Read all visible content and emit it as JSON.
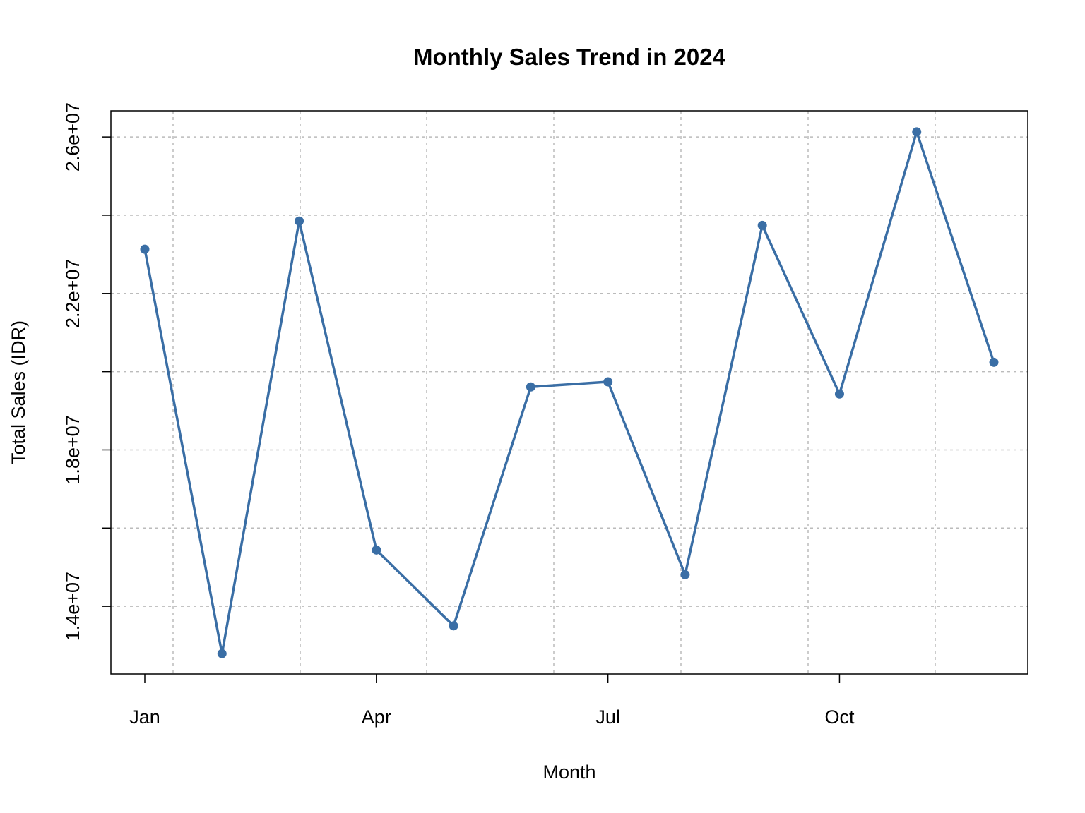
{
  "chart_data": {
    "type": "line",
    "title": "Monthly Sales Trend in 2024",
    "x_label": "Month",
    "y_label": "Total Sales (IDR)",
    "categories": [
      "Jan",
      null,
      null,
      "Apr",
      null,
      null,
      "Jul",
      null,
      null,
      "Oct",
      null,
      null
    ],
    "series": [
      {
        "name": "Total Sales",
        "color": "#3a6ea5",
        "values": [
          23130000,
          12790000,
          23850000,
          15440000,
          13500000,
          19610000,
          19740000,
          14810000,
          23740000,
          19430000,
          26130000,
          20240000
        ]
      }
    ],
    "ylim": [
      12270000,
      26670000
    ],
    "yticks": [
      {
        "value": 14000000,
        "label": "1.4e+07"
      },
      {
        "value": 18000000,
        "label": "1.8e+07"
      },
      {
        "value": 22000000,
        "label": "2.2e+07"
      },
      {
        "value": 26000000,
        "label": "2.6e+07"
      }
    ],
    "minor_yticks": [
      16000000,
      20000000,
      24000000
    ],
    "grid": true
  }
}
